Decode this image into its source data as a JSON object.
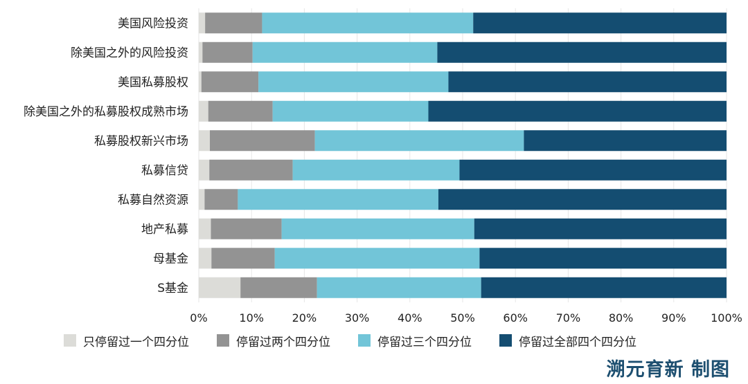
{
  "chart_data": {
    "type": "bar",
    "orientation": "horizontal",
    "stacked": "100%",
    "categories": [
      "美国风险投资",
      "除美国之外的风险投资",
      "美国私募股权",
      "除美国之外的私募股权成熟市场",
      "私募股权新兴市场",
      "私募信贷",
      "私募自然资源",
      "地产私募",
      "母基金",
      "S基金"
    ],
    "series": [
      {
        "name": "只停留过一个四分位",
        "color": "#dcdcd8",
        "values": [
          1.2,
          0.7,
          0.5,
          1.8,
          2.1,
          2.0,
          1.1,
          2.3,
          2.4,
          7.9
        ]
      },
      {
        "name": "停留过两个四分位",
        "color": "#939393",
        "values": [
          10.8,
          9.5,
          10.8,
          12.2,
          19.9,
          15.8,
          6.3,
          13.4,
          12.0,
          14.5
        ]
      },
      {
        "name": "停留过三个四分位",
        "color": "#72c5d8",
        "values": [
          40.0,
          35.0,
          36.0,
          29.5,
          39.6,
          31.6,
          38.0,
          36.5,
          38.8,
          31.1
        ]
      },
      {
        "name": "停留过全部四个四分位",
        "color": "#144d71",
        "values": [
          48.0,
          54.8,
          52.7,
          56.5,
          38.4,
          50.6,
          54.6,
          47.8,
          46.8,
          46.5
        ]
      }
    ],
    "x_ticks": [
      "0%",
      "10%",
      "20%",
      "30%",
      "40%",
      "50%",
      "60%",
      "70%",
      "80%",
      "90%",
      "100%"
    ],
    "xlim": [
      0,
      100
    ],
    "grid": true,
    "legend_position": "bottom"
  },
  "credit": "溯元育新 制图"
}
